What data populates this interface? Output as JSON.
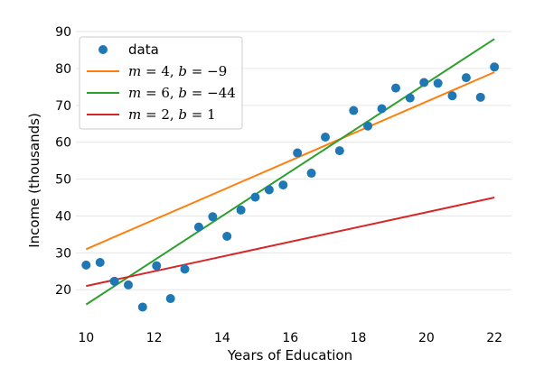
{
  "chart_data": {
    "type": "scatter",
    "title": "",
    "xlabel": "Years of Education",
    "ylabel": "Income (thousands)",
    "xlim": [
      9.7,
      22.5
    ],
    "ylim": [
      11.5,
      90.5
    ],
    "xticks": [
      10,
      12,
      14,
      16,
      18,
      20,
      22
    ],
    "yticks": [
      20,
      30,
      40,
      50,
      60,
      70,
      80,
      90
    ],
    "grid": "horizontal",
    "legend_position": "top-left",
    "scatter": {
      "name": "data",
      "color": "#1f77b4",
      "x": [
        10.0,
        10.41,
        10.83,
        11.24,
        11.66,
        12.07,
        12.48,
        12.9,
        13.31,
        13.72,
        14.14,
        14.55,
        14.97,
        15.38,
        15.79,
        16.21,
        16.62,
        17.03,
        17.45,
        17.86,
        18.28,
        18.69,
        19.1,
        19.52,
        19.93,
        20.34,
        20.76,
        21.17,
        21.59,
        22.0
      ],
      "y": [
        26.7,
        27.4,
        22.3,
        21.3,
        15.3,
        26.5,
        17.6,
        25.6,
        37.0,
        39.8,
        34.5,
        41.6,
        45.1,
        47.1,
        48.4,
        57.1,
        51.6,
        61.4,
        57.7,
        68.6,
        64.4,
        69.1,
        74.7,
        72.0,
        76.2,
        76.0,
        72.6,
        77.5,
        72.2,
        80.4
      ]
    },
    "lines": [
      {
        "name": "m = 4, b = −9",
        "m_value": "4",
        "b_value": "−9",
        "slope": 4,
        "intercept": -9,
        "color": "#ff7f0e"
      },
      {
        "name": "m = 6, b = −44",
        "m_value": "6",
        "b_value": "−44",
        "slope": 6,
        "intercept": -44,
        "color": "#2ca02c"
      },
      {
        "name": "m = 2, b = 1",
        "m_value": "2",
        "b_value": "1",
        "slope": 2,
        "intercept": 1,
        "color": "#d62728"
      }
    ],
    "line_x_range": [
      10,
      22
    ]
  }
}
